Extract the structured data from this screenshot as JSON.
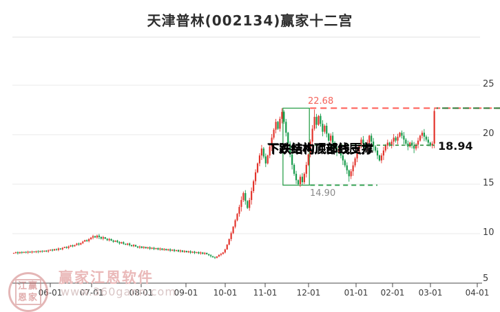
{
  "header": {
    "title": "天津普林(002134)赢家十二宫"
  },
  "watermark": {
    "stamp_rows": [
      "江赢",
      "恩家"
    ],
    "brand": "赢家江恩软件",
    "url": "www.360gann.com"
  },
  "chart_data": {
    "type": "candlestick",
    "title": "天津普林(002134)赢家十二宫",
    "x_tick_labels": [
      "06-01",
      "07-01",
      "08-01",
      "09-01",
      "10-01",
      "11-01",
      "12-01",
      "01-01",
      "02-01",
      "03-01",
      "04-01"
    ],
    "y_ticks": [
      25,
      20,
      15,
      10,
      5
    ],
    "ylim": [
      5,
      29.9
    ],
    "grid": "horizontal",
    "up_color": "#e3342c",
    "down_color": "#169b4a",
    "resistance_line": {
      "value": 22.68,
      "label": "22.68",
      "color": "#ff5a52",
      "style": "dashed"
    },
    "support_line": {
      "value": 14.9,
      "label": "14.90",
      "color": "#2ca04c",
      "style": "dashed"
    },
    "current_line": {
      "value": 18.94,
      "label": "18.94",
      "color": "#2e8f3e",
      "style": "dashed"
    },
    "structure_box": {
      "top": 22.68,
      "bottom": 14.9,
      "start_index": 133,
      "end_index": 145,
      "color": "#2ca04c"
    },
    "structure_labels": [
      "下跌结构顶部线压力",
      "下跌结构底部线支撑"
    ],
    "first_open": 8.0,
    "closes": [
      8.05,
      8.12,
      8.02,
      8.14,
      8.06,
      8.16,
      8.08,
      8.18,
      8.1,
      8.2,
      8.12,
      8.22,
      8.15,
      8.25,
      8.18,
      8.28,
      8.2,
      8.3,
      8.38,
      8.3,
      8.44,
      8.36,
      8.5,
      8.42,
      8.56,
      8.66,
      8.56,
      8.7,
      8.82,
      8.72,
      8.86,
      9.0,
      8.9,
      9.05,
      9.2,
      9.35,
      9.25,
      9.45,
      9.6,
      9.75,
      9.62,
      9.8,
      9.66,
      9.5,
      9.64,
      9.48,
      9.34,
      9.46,
      9.3,
      9.18,
      9.3,
      9.14,
      9.02,
      9.14,
      8.98,
      8.88,
      9.0,
      8.84,
      8.74,
      8.86,
      8.7,
      8.6,
      8.7,
      8.56,
      8.66,
      8.52,
      8.62,
      8.48,
      8.58,
      8.44,
      8.54,
      8.4,
      8.5,
      8.36,
      8.46,
      8.32,
      8.42,
      8.28,
      8.38,
      8.24,
      8.34,
      8.2,
      8.3,
      8.16,
      8.26,
      8.12,
      8.22,
      8.08,
      8.18,
      8.04,
      8.14,
      8.0,
      8.1,
      7.96,
      8.06,
      7.92,
      7.82,
      7.72,
      7.62,
      7.55,
      7.7,
      7.85,
      7.95,
      8.1,
      8.4,
      8.9,
      9.45,
      10.05,
      10.7,
      11.35,
      12.0,
      12.7,
      13.4,
      14.1,
      13.3,
      12.6,
      13.4,
      14.3,
      15.3,
      16.2,
      17.1,
      17.9,
      18.6,
      17.8,
      17.1,
      17.9,
      18.8,
      19.7,
      20.5,
      21.3,
      20.6,
      21.6,
      22.3,
      21.3,
      20.2,
      19.1,
      18.0,
      16.95,
      16.05,
      15.4,
      15.0,
      15.75,
      15.2,
      16.05,
      16.95,
      18.0,
      19.3,
      20.6,
      21.8,
      21.0,
      21.9,
      21.1,
      20.3,
      20.9,
      20.1,
      19.4,
      19.9,
      19.2,
      18.7,
      18.2,
      18.6,
      17.9,
      17.4,
      16.9,
      16.4,
      15.8,
      16.3,
      16.9,
      17.6,
      18.3,
      18.9,
      19.5,
      19.1,
      18.7,
      19.2,
      19.9,
      19.3,
      18.8,
      18.4,
      17.9,
      17.4,
      17.9,
      18.4,
      18.9,
      19.2,
      18.9,
      19.3,
      19.7,
      19.4,
      19.8,
      20.2,
      19.9,
      19.5,
      19.1,
      18.8,
      19.2,
      18.9,
      18.6,
      19.0,
      19.4,
      19.9,
      20.2,
      19.8,
      19.5,
      19.2,
      18.9,
      19.1,
      22.4
    ],
    "overrides": {
      "132": {
        "high": 22.68
      },
      "140": {
        "low": 14.9
      },
      "142": {
        "low": 14.92
      },
      "148": {
        "high": 22.55
      },
      "165": {
        "low": 15.25
      },
      "207": {
        "high": 22.62
      }
    }
  }
}
